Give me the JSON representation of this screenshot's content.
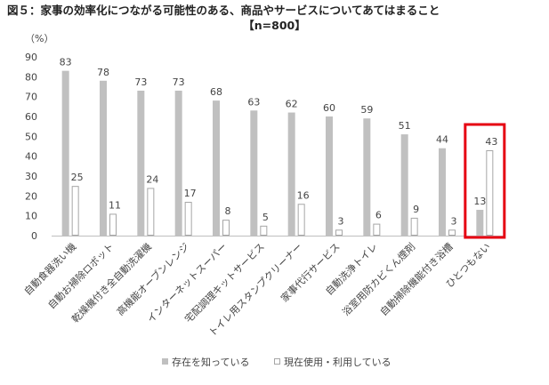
{
  "header": {
    "title": "図５：家事の効率化につながる可能性のある、商品やサービスについてあてはまること",
    "subtitle": "【n=800】"
  },
  "chart_data": {
    "type": "bar",
    "title": "図５：家事の効率化につながる可能性のある、商品やサービスについてあてはまること",
    "subtitle": "【n=800】",
    "ylabel": "（%）",
    "xlabel": "",
    "ylim": [
      0,
      90
    ],
    "yticks": [
      0,
      10,
      20,
      30,
      40,
      50,
      60,
      70,
      80,
      90
    ],
    "grid": false,
    "legend": "bottom-center",
    "categories": [
      "自動食器洗い機",
      "自動お掃除ロボット",
      "乾燥機付き全自動洗濯機",
      "高機能オーブンレンジ",
      "インターネットスーパー",
      "宅配調理キットサービス",
      "トイレ用スタンプクリーナー",
      "家事代行サービス",
      "自動洗浄トイレ",
      "浴室用防カビくん煙剤",
      "自動掃除機能付き浴槽",
      "ひとつもない"
    ],
    "series": [
      {
        "name": "存在を知っている",
        "color": "#c0c0c0",
        "values": [
          83,
          78,
          73,
          73,
          68,
          63,
          62,
          60,
          59,
          51,
          44,
          13
        ]
      },
      {
        "name": "現在使用・利用している",
        "color": "#ffffff",
        "values": [
          25,
          11,
          24,
          17,
          8,
          5,
          16,
          3,
          6,
          9,
          3,
          43
        ]
      }
    ],
    "highlight": {
      "category": "ひとつもない",
      "color": "#e60012"
    }
  }
}
